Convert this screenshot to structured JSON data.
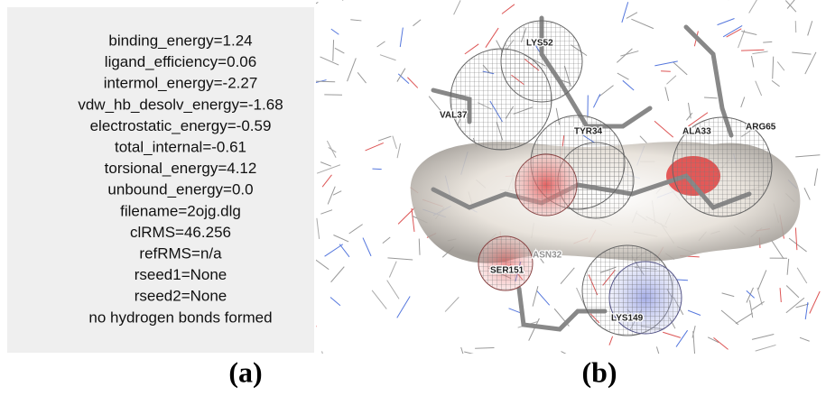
{
  "panel_a": {
    "lines": [
      "binding_energy=1.24",
      "ligand_efficiency=0.06",
      "intermol_energy=-2.27",
      "vdw_hb_desolv_energy=-1.68",
      "electrostatic_energy=-0.59",
      "total_internal=-0.61",
      "torsional_energy=4.12",
      "unbound_energy=0.0",
      "filename=2ojg.dlg",
      "clRMS=46.256",
      "refRMS=n/a",
      "rseed1=None",
      "rseed2=None",
      "no hydrogen bonds formed"
    ],
    "caption": "(a)"
  },
  "panel_b": {
    "labels": [
      "LYS52",
      "VAL37",
      "TYR34",
      "ALA33",
      "ARG65",
      "ASN32",
      "SER151",
      "LYS149"
    ],
    "caption": "(b)"
  }
}
